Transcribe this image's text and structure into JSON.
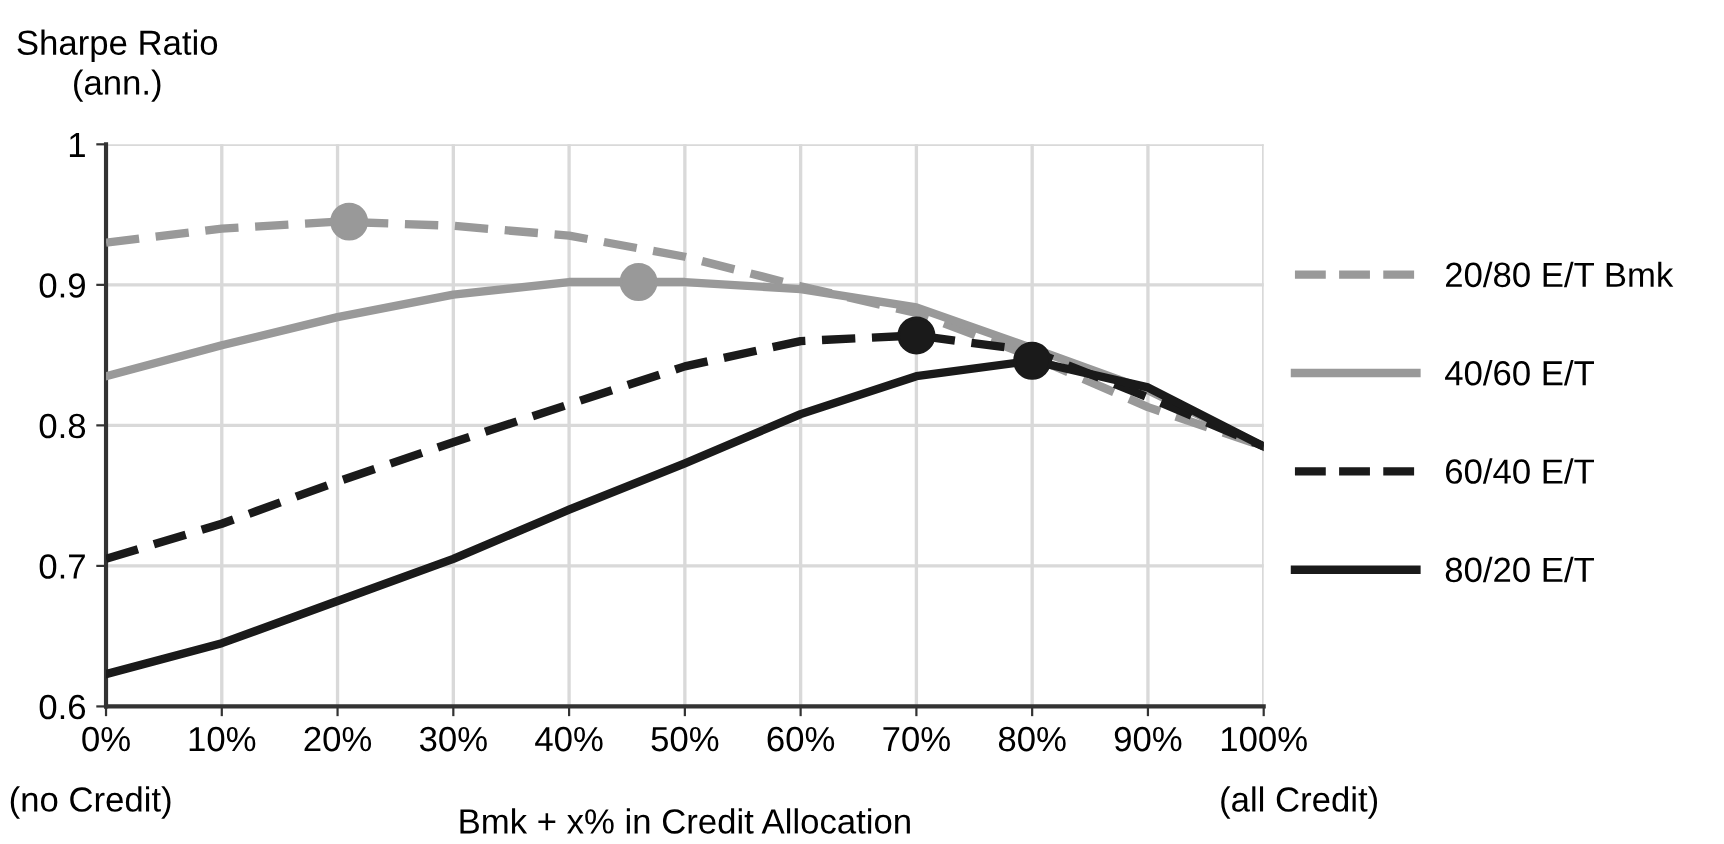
{
  "chart_data": {
    "type": "line",
    "ylabel": "Sharpe Ratio\n(ann.)",
    "xlabel": "Bmk + x% in Credit Allocation",
    "annotations": [
      "(no Credit)",
      "(all Credit)"
    ],
    "x": [
      0,
      10,
      20,
      30,
      40,
      50,
      60,
      70,
      80,
      90,
      100
    ],
    "series": [
      {
        "name": "20/80 E/T Bmk",
        "color": "#999999",
        "line_style": "dashed",
        "values": [
          0.93,
          0.94,
          0.945,
          0.942,
          0.935,
          0.92,
          0.899,
          0.88,
          0.849,
          0.813,
          0.785
        ]
      },
      {
        "name": "40/60 E/T",
        "color": "#999999",
        "line_style": "solid",
        "values": [
          0.835,
          0.857,
          0.877,
          0.893,
          0.902,
          0.902,
          0.897,
          0.884,
          0.855,
          0.825,
          0.785
        ]
      },
      {
        "name": "60/40 E/T",
        "color": "#1a1a1a",
        "line_style": "dashed",
        "values": [
          0.705,
          0.73,
          0.76,
          0.788,
          0.815,
          0.842,
          0.86,
          0.864,
          0.853,
          0.82,
          0.785
        ]
      },
      {
        "name": "80/20 E/T",
        "color": "#1a1a1a",
        "line_style": "solid",
        "values": [
          0.623,
          0.645,
          0.675,
          0.705,
          0.74,
          0.773,
          0.808,
          0.835,
          0.846,
          0.827,
          0.785
        ]
      },
      {
        "type": "scatter",
        "color": "#999999",
        "marker": "circle",
        "x": [
          21,
          46
        ],
        "values": [
          0.945,
          0.902
        ]
      },
      {
        "type": "scatter",
        "color": "#1a1a1a",
        "marker": "circle",
        "x": [
          70,
          80
        ],
        "values": [
          0.864,
          0.846
        ]
      }
    ],
    "xlim": [
      0,
      100
    ],
    "xticks": [
      {
        "value": 0,
        "label": "0%"
      },
      {
        "value": 10,
        "label": "10%"
      },
      {
        "value": 20,
        "label": "20%"
      },
      {
        "value": 30,
        "label": "30%"
      },
      {
        "value": 40,
        "label": "40%"
      },
      {
        "value": 50,
        "label": "50%"
      },
      {
        "value": 60,
        "label": "60%"
      },
      {
        "value": 70,
        "label": "70%"
      },
      {
        "value": 80,
        "label": "80%"
      },
      {
        "value": 90,
        "label": "90%"
      },
      {
        "value": 100,
        "label": "100%"
      }
    ],
    "ylim": [
      0.6,
      1
    ],
    "yticks": [
      0.6,
      0.7,
      0.8,
      0.9,
      1
    ],
    "grid": true,
    "legend": "right"
  }
}
